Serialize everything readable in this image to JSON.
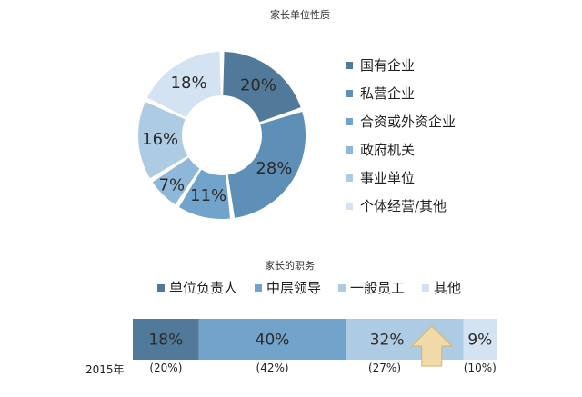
{
  "colors": {
    "blue_darkest": "#50799A",
    "blue_dark": "#5E8FB7",
    "blue_mid": "#72A3CB",
    "blue_light": "#8FB7D9",
    "blue_lighter": "#AECBE4",
    "blue_pale": "#D3E3F1",
    "arrow_fill": "#F1D9A8",
    "arrow_stroke": "#D9B46A"
  },
  "chart_data": [
    {
      "type": "pie",
      "title": "家长单位性质",
      "categories": [
        "国有企业",
        "私营企业",
        "合资或外资企业",
        "政府机关",
        "事业单位",
        "个体经营/其他"
      ],
      "values": [
        20,
        28,
        11,
        7,
        16,
        18
      ],
      "labels": [
        "20%",
        "28%",
        "11%",
        "7%",
        "16%",
        "18%"
      ],
      "colors": [
        "#50799A",
        "#5E8FB7",
        "#72A3CB",
        "#8FB7D9",
        "#AECBE4",
        "#D3E3F1"
      ],
      "legend": "right",
      "donut": true
    },
    {
      "type": "bar",
      "orientation": "horizontal",
      "stacked": true,
      "title": "家长的职务",
      "categories": [
        "2015年"
      ],
      "series": [
        {
          "name": "单位负责人",
          "values": [
            18
          ],
          "label": "18%",
          "previous_label": "(20%)"
        },
        {
          "name": "中层领导",
          "values": [
            40
          ],
          "label": "40%",
          "previous_label": "(42%)"
        },
        {
          "name": "一般员工",
          "values": [
            32
          ],
          "label": "32%",
          "previous_label": "(27%)"
        },
        {
          "name": "其他",
          "values": [
            9
          ],
          "label": "9%",
          "previous_label": "(10%)"
        }
      ],
      "colors": [
        "#50799A",
        "#72A3CB",
        "#AECBE4",
        "#D3E3F1"
      ],
      "legend": "top",
      "annotation": "up-arrow-icon"
    }
  ]
}
